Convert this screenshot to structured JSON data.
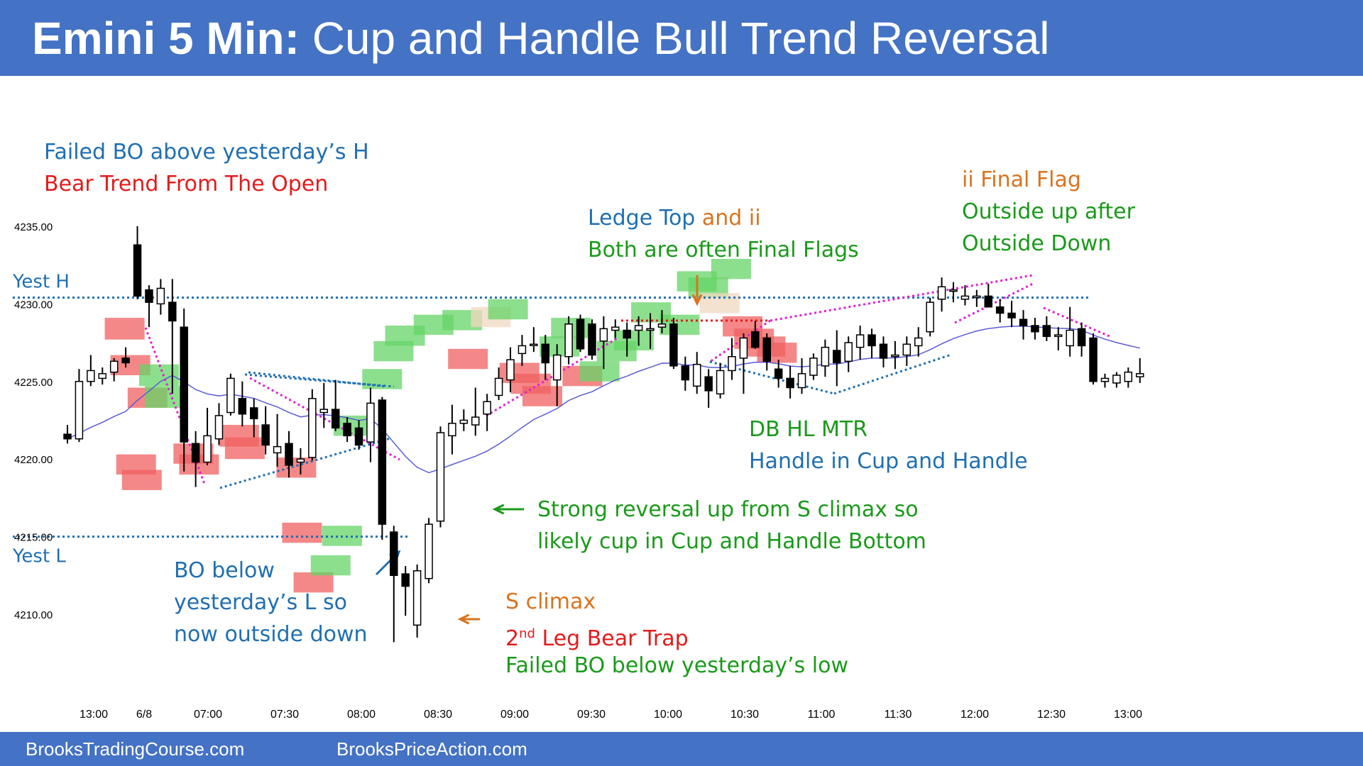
{
  "title": {
    "bold": "Emini 5 Min:",
    "rest": "Cup and Handle Bull Trend Reversal"
  },
  "footer": {
    "left": "BrooksTradingCourse.com",
    "right": "BrooksPriceAction.com"
  },
  "colors": {
    "header_bg": "#4472c4",
    "blue_text": "#1f6fb2",
    "red_text": "#e31b1b",
    "green_text": "#1a9a1a",
    "orange_text": "#d9731f",
    "ema": "#5b5bd6",
    "magenta_line": "#e020d0",
    "box_green": "#66d466",
    "box_red": "#f06060",
    "box_tan": "#f0d8c0"
  },
  "annotations": {
    "failed_bo": "Failed BO above yesterday’s H",
    "bear_trend": "Bear Trend From The Open",
    "ledge_top": "Ledge Top",
    "and_ii": " and ii",
    "final_flags": "Both are often Final Flags",
    "ii_final_flag": "ii Final Flag",
    "outside_up": "Outside up after",
    "outside_down": "Outside Down",
    "db_hl": "DB HL MTR",
    "handle": "Handle in Cup and Handle",
    "strong_rev_1": "Strong reversal up from S climax so",
    "strong_rev_2": "likely cup in Cup and Handle Bottom",
    "bo_below_1": "BO below",
    "bo_below_2": "yesterday’s L so",
    "bo_below_3": "now outside down",
    "s_climax": "S climax",
    "leg_num": "2",
    "leg_sup": "nd",
    "leg_text": " Leg Bear Trap",
    "failed_bo_low": "Failed BO below yesterday’s low"
  },
  "chart_data": {
    "type": "candlestick",
    "ylim": [
      4205,
      4237
    ],
    "y_ticks": [
      "4235.00",
      "4230.00",
      "4225.00",
      "4220.00",
      "4215.00",
      "4210.00"
    ],
    "x_ticks": [
      "13:00",
      "6/8",
      "07:00",
      "07:30",
      "08:00",
      "08:30",
      "09:00",
      "09:30",
      "10:00",
      "10:30",
      "11:00",
      "11:30",
      "12:00",
      "12:30",
      "13:00"
    ],
    "levels": [
      {
        "name": "Yest H",
        "value": 4230.4
      },
      {
        "name": "Yest L",
        "value": 4215.0
      }
    ],
    "candles": [
      [
        4221.6,
        4222.2,
        4221.0,
        4221.3
      ],
      [
        4221.3,
        4225.8,
        4221.1,
        4225.0
      ],
      [
        4225.0,
        4226.7,
        4224.7,
        4225.7
      ],
      [
        4225.2,
        4225.9,
        4224.8,
        4225.5
      ],
      [
        4225.6,
        4226.5,
        4225.0,
        4226.3
      ],
      [
        4226.5,
        4227.2,
        4225.9,
        4226.2
      ],
      [
        4233.8,
        4235.0,
        4230.3,
        4230.5
      ],
      [
        4230.9,
        4231.2,
        4228.5,
        4230.1
      ],
      [
        4230.0,
        4231.6,
        4229.3,
        4231.0
      ],
      [
        4230.1,
        4231.6,
        4224.2,
        4228.9
      ],
      [
        4228.5,
        4229.7,
        4219.2,
        4221.1
      ],
      [
        4221.0,
        4221.8,
        4218.2,
        4219.8
      ],
      [
        4219.8,
        4223.3,
        4219.6,
        4221.5
      ],
      [
        4221.3,
        4223.6,
        4220.9,
        4222.8
      ],
      [
        4223.0,
        4225.5,
        4222.8,
        4225.2
      ],
      [
        4223.9,
        4225.0,
        4222.1,
        4222.9
      ],
      [
        4223.3,
        4223.9,
        4221.4,
        4222.6
      ],
      [
        4222.2,
        4223.4,
        4220.3,
        4220.9
      ],
      [
        4220.4,
        4222.9,
        4219.5,
        4220.8
      ],
      [
        4221.0,
        4221.8,
        4218.8,
        4219.6
      ],
      [
        4219.8,
        4220.7,
        4219.0,
        4220.0
      ],
      [
        4220.1,
        4224.5,
        4219.9,
        4223.9
      ],
      [
        4223.0,
        4224.9,
        4222.0,
        4223.2
      ],
      [
        4223.2,
        4225.1,
        4221.8,
        4222.0
      ],
      [
        4222.3,
        4222.7,
        4221.1,
        4221.5
      ],
      [
        4222.0,
        4222.5,
        4220.6,
        4220.9
      ],
      [
        4221.1,
        4224.6,
        4219.8,
        4223.6
      ],
      [
        4223.8,
        4224.0,
        4214.8,
        4215.8
      ],
      [
        4215.3,
        4215.7,
        4208.2,
        4212.5
      ],
      [
        4212.6,
        4213.1,
        4209.9,
        4211.8
      ],
      [
        4209.3,
        4213.2,
        4208.5,
        4212.8
      ],
      [
        4212.3,
        4216.2,
        4212.0,
        4215.8
      ],
      [
        4216.0,
        4222.1,
        4215.6,
        4221.7
      ],
      [
        4221.5,
        4223.5,
        4220.3,
        4222.3
      ],
      [
        4222.3,
        4223.2,
        4221.8,
        4222.5
      ],
      [
        4222.2,
        4224.6,
        4221.5,
        4222.7
      ],
      [
        4222.9,
        4224.2,
        4221.8,
        4223.7
      ],
      [
        4224.1,
        4225.9,
        4223.8,
        4225.2
      ],
      [
        4225.1,
        4227.2,
        4224.3,
        4226.4
      ],
      [
        4226.8,
        4228.0,
        4226.0,
        4227.3
      ],
      [
        4227.4,
        4228.5,
        4226.9,
        4227.4
      ],
      [
        4227.4,
        4228.0,
        4225.1,
        4226.2
      ],
      [
        4225.1,
        4227.4,
        4223.4,
        4226.7
      ],
      [
        4226.6,
        4229.2,
        4226.1,
        4228.7
      ],
      [
        4229.0,
        4229.3,
        4226.9,
        4227.1
      ],
      [
        4228.7,
        4229.0,
        4226.4,
        4226.7
      ],
      [
        4227.6,
        4229.2,
        4225.8,
        4228.4
      ],
      [
        4228.3,
        4229.0,
        4227.8,
        4228.5
      ],
      [
        4228.3,
        4228.8,
        4226.6,
        4227.8
      ],
      [
        4228.3,
        4229.2,
        4227.3,
        4228.6
      ],
      [
        4228.3,
        4229.4,
        4227.1,
        4228.4
      ],
      [
        4228.5,
        4229.6,
        4228.1,
        4228.7
      ],
      [
        4228.7,
        4229.1,
        4225.8,
        4226.0
      ],
      [
        4226.0,
        4226.6,
        4224.4,
        4225.1
      ],
      [
        4224.7,
        4226.9,
        4224.2,
        4226.1
      ],
      [
        4225.3,
        4225.8,
        4223.3,
        4224.4
      ],
      [
        4224.2,
        4226.2,
        4223.9,
        4225.7
      ],
      [
        4225.7,
        4227.8,
        4225.1,
        4226.6
      ],
      [
        4226.5,
        4228.1,
        4224.2,
        4227.8
      ],
      [
        4228.2,
        4228.9,
        4227.1,
        4227.2
      ],
      [
        4227.8,
        4228.1,
        4225.7,
        4226.3
      ],
      [
        4225.8,
        4226.4,
        4224.6,
        4225.2
      ],
      [
        4225.2,
        4226.0,
        4223.9,
        4224.6
      ],
      [
        4224.6,
        4226.5,
        4224.2,
        4225.5
      ],
      [
        4225.4,
        4226.8,
        4225.1,
        4226.5
      ],
      [
        4226.0,
        4227.7,
        4225.3,
        4227.2
      ],
      [
        4227.0,
        4228.3,
        4224.7,
        4226.2
      ],
      [
        4226.3,
        4227.9,
        4225.6,
        4227.5
      ],
      [
        4227.2,
        4228.6,
        4226.4,
        4228.0
      ],
      [
        4228.0,
        4228.4,
        4226.5,
        4227.3
      ],
      [
        4227.4,
        4227.9,
        4225.9,
        4226.5
      ],
      [
        4226.6,
        4227.6,
        4225.8,
        4226.7
      ],
      [
        4226.7,
        4227.9,
        4226.0,
        4227.4
      ],
      [
        4227.3,
        4228.5,
        4226.6,
        4227.8
      ],
      [
        4228.2,
        4230.4,
        4227.9,
        4230.1
      ],
      [
        4230.3,
        4231.7,
        4229.5,
        4231.1
      ],
      [
        4230.9,
        4231.4,
        4230.1,
        4230.9
      ],
      [
        4230.3,
        4231.2,
        4229.9,
        4230.5
      ],
      [
        4230.4,
        4230.9,
        4229.8,
        4230.5
      ],
      [
        4230.5,
        4231.3,
        4229.8,
        4229.8
      ],
      [
        4229.8,
        4230.3,
        4228.8,
        4229.4
      ],
      [
        4229.4,
        4230.2,
        4228.5,
        4229.1
      ],
      [
        4229.0,
        4229.6,
        4227.7,
        4228.6
      ],
      [
        4228.6,
        4229.1,
        4227.7,
        4228.2
      ],
      [
        4228.6,
        4229.2,
        4227.6,
        4227.9
      ],
      [
        4227.9,
        4228.5,
        4227.0,
        4228.0
      ],
      [
        4227.3,
        4229.8,
        4226.6,
        4228.3
      ],
      [
        4228.4,
        4228.8,
        4226.6,
        4227.3
      ],
      [
        4227.8,
        4228.1,
        4224.8,
        4225.0
      ],
      [
        4225.0,
        4225.5,
        4224.6,
        4225.2
      ],
      [
        4224.9,
        4225.6,
        4224.6,
        4225.4
      ],
      [
        4225.0,
        4225.9,
        4224.6,
        4225.6
      ],
      [
        4225.3,
        4226.5,
        4224.9,
        4225.5
      ]
    ]
  }
}
